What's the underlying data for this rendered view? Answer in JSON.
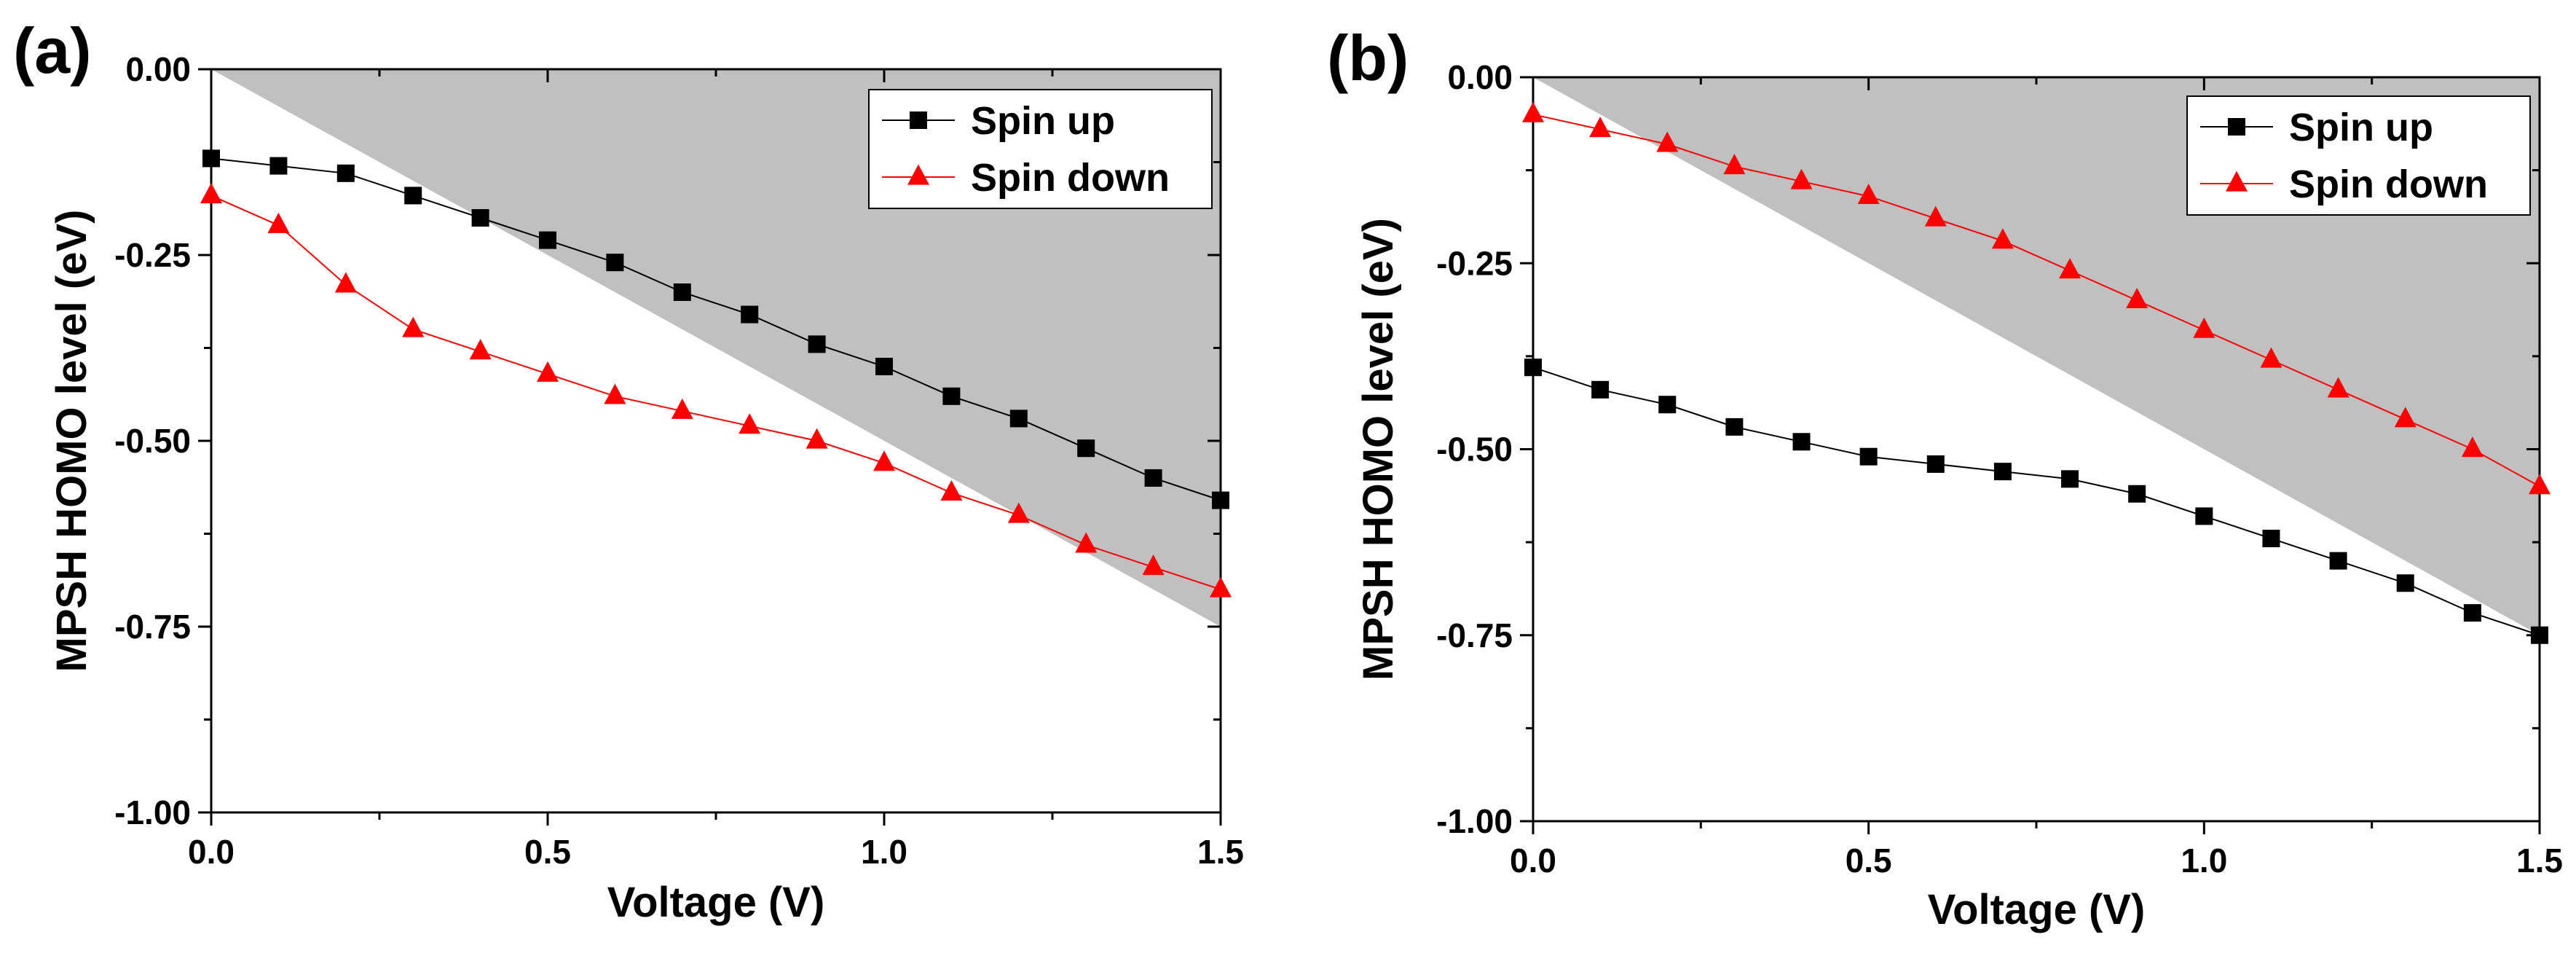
{
  "colors": {
    "spin_up": "#000000",
    "spin_down": "#ff0000",
    "shade": "#c0c0c0"
  },
  "chart_data": [
    {
      "panel_label": "(a)",
      "type": "line",
      "xlabel": "Voltage (V)",
      "ylabel": "MPSH HOMO level (eV)",
      "xlim": [
        0,
        1.5
      ],
      "ylim": [
        -1.0,
        0.0
      ],
      "x_ticks": [
        0,
        0.5,
        1.0,
        1.5
      ],
      "x_tick_labels": [
        "0.0",
        "0.5",
        "1.0",
        "1.5"
      ],
      "y_ticks": [
        0,
        -0.25,
        -0.5,
        -0.75,
        -1.0
      ],
      "y_tick_labels": [
        "0.00",
        "-0.25",
        "-0.50",
        "-0.75",
        "-1.00"
      ],
      "shaded_region": "area above the line from (0, 0) to (1.5, -0.75)",
      "shaded_line": [
        [
          0,
          0
        ],
        [
          1.5,
          -0.75
        ]
      ],
      "legend_position": "top-right",
      "x": [
        0,
        0.1,
        0.2,
        0.3,
        0.4,
        0.5,
        0.6,
        0.7,
        0.8,
        0.9,
        1.0,
        1.1,
        1.2,
        1.3,
        1.4,
        1.5
      ],
      "series": [
        {
          "name": "Spin up",
          "marker": "square",
          "color": "#000000",
          "values": [
            -0.12,
            -0.13,
            -0.14,
            -0.17,
            -0.2,
            -0.23,
            -0.26,
            -0.3,
            -0.33,
            -0.37,
            -0.4,
            -0.44,
            -0.47,
            -0.51,
            -0.55,
            -0.58
          ]
        },
        {
          "name": "Spin down",
          "marker": "triangle",
          "color": "#ff0000",
          "values": [
            -0.17,
            -0.21,
            -0.29,
            -0.35,
            -0.38,
            -0.41,
            -0.44,
            -0.46,
            -0.48,
            -0.5,
            -0.53,
            -0.57,
            -0.6,
            -0.64,
            -0.67,
            -0.7
          ]
        }
      ]
    },
    {
      "panel_label": "(b)",
      "type": "line",
      "xlabel": "Voltage (V)",
      "ylabel": "MPSH HOMO level (eV)",
      "xlim": [
        0,
        1.5
      ],
      "ylim": [
        -1.0,
        0.0
      ],
      "x_ticks": [
        0,
        0.5,
        1.0,
        1.5
      ],
      "x_tick_labels": [
        "0.0",
        "0.5",
        "1.0",
        "1.5"
      ],
      "y_ticks": [
        0,
        -0.25,
        -0.5,
        -0.75,
        -1.0
      ],
      "y_tick_labels": [
        "0.00",
        "-0.25",
        "-0.50",
        "-0.75",
        "-1.00"
      ],
      "shaded_region": "area above the line from (0, 0) to (1.5, -0.75)",
      "shaded_line": [
        [
          0,
          0
        ],
        [
          1.5,
          -0.75
        ]
      ],
      "legend_position": "top-right",
      "x": [
        0,
        0.1,
        0.2,
        0.3,
        0.4,
        0.5,
        0.6,
        0.7,
        0.8,
        0.9,
        1.0,
        1.1,
        1.2,
        1.3,
        1.4,
        1.5
      ],
      "series": [
        {
          "name": "Spin up",
          "marker": "square",
          "color": "#000000",
          "values": [
            -0.39,
            -0.42,
            -0.44,
            -0.47,
            -0.49,
            -0.51,
            -0.52,
            -0.53,
            -0.54,
            -0.56,
            -0.59,
            -0.62,
            -0.65,
            -0.68,
            -0.72,
            -0.75
          ]
        },
        {
          "name": "Spin down",
          "marker": "triangle",
          "color": "#ff0000",
          "values": [
            -0.05,
            -0.07,
            -0.09,
            -0.12,
            -0.14,
            -0.16,
            -0.19,
            -0.22,
            -0.26,
            -0.3,
            -0.34,
            -0.38,
            -0.42,
            -0.46,
            -0.5,
            -0.55
          ]
        }
      ]
    }
  ]
}
